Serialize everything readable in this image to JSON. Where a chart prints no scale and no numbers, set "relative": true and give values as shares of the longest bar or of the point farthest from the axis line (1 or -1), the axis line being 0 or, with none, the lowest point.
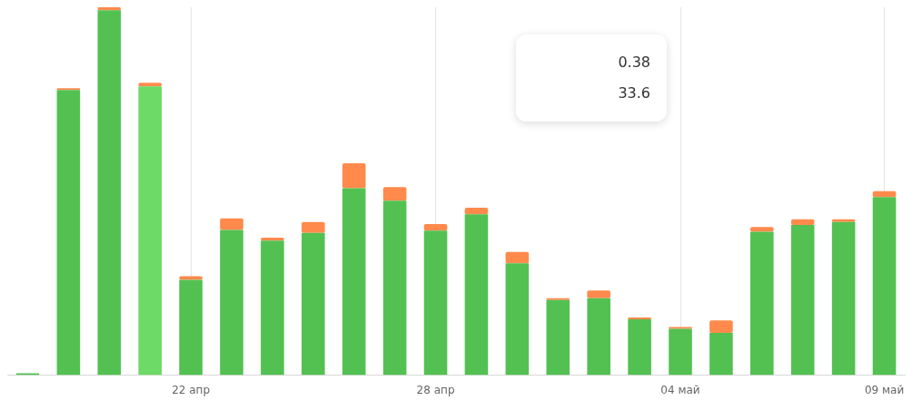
{
  "chart_data": {
    "type": "bar",
    "stacked": true,
    "relative": true,
    "grid": "x",
    "categories": [
      null,
      null,
      null,
      null,
      "22 апр",
      null,
      null,
      null,
      null,
      null,
      "28 апр",
      null,
      null,
      null,
      null,
      null,
      "04 май",
      null,
      null,
      null,
      null,
      "09 май"
    ],
    "series": [
      {
        "color": "#53c152",
        "colors": [
          null,
          null,
          null,
          "#6dd966",
          null,
          null,
          null,
          null,
          null,
          null,
          null,
          null,
          null,
          null,
          null,
          null,
          null,
          null,
          null,
          null,
          null,
          null
        ],
        "values": [
          0.005,
          0.775,
          0.992,
          0.785,
          0.259,
          0.395,
          0.366,
          0.387,
          0.508,
          0.474,
          0.393,
          0.437,
          0.304,
          0.204,
          0.209,
          0.152,
          0.126,
          0.115,
          0.39,
          0.408,
          0.416,
          0.484
        ]
      },
      {
        "color": "#ff8a4c",
        "values": [
          null,
          0.005,
          0.008,
          0.01,
          0.01,
          0.031,
          0.008,
          0.029,
          0.068,
          0.037,
          0.018,
          0.018,
          0.031,
          0.005,
          0.021,
          0.005,
          0.005,
          0.034,
          0.013,
          0.016,
          0.008,
          0.016
        ]
      }
    ],
    "annotations": [
      "0.38",
      "33.6"
    ]
  }
}
